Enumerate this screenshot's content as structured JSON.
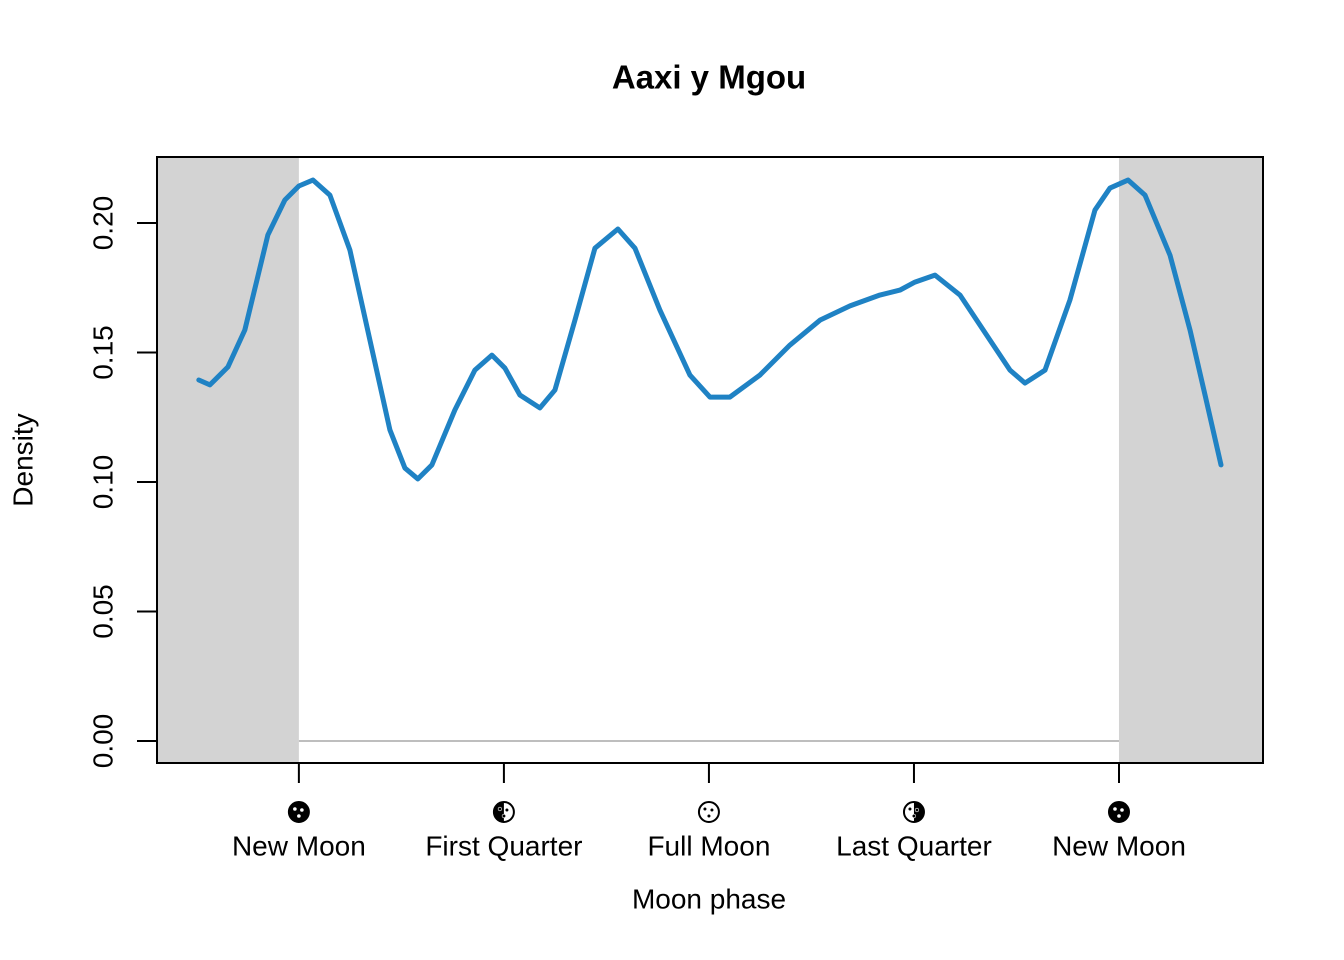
{
  "chart_data": {
    "type": "line",
    "title": "Aaxi y Mgou",
    "x_label": "Moon phase",
    "y_label": "Density",
    "xlim": [
      -0.173,
      1.1756
    ],
    "ylim": [
      -0.0085,
      0.2255
    ],
    "xticks": [
      {
        "value": 0,
        "label": "New Moon"
      },
      {
        "value": 0.25,
        "label": "First Quarter"
      },
      {
        "value": 0.5,
        "label": "Full Moon"
      },
      {
        "value": 0.75,
        "label": "Last Quarter"
      },
      {
        "value": 1,
        "label": "New Moon"
      }
    ],
    "yticks": [
      {
        "value": 0,
        "label": "0.00"
      },
      {
        "value": 0.05,
        "label": "0.05"
      },
      {
        "value": 0.1,
        "label": "0.10"
      },
      {
        "value": 0.15,
        "label": "0.15"
      },
      {
        "value": 0.2,
        "label": "0.20"
      }
    ],
    "series": [
      {
        "color": "#1f82c4",
        "x": [
          -0.122,
          -0.1085,
          -0.0866,
          -0.0659,
          -0.0378,
          -0.0171,
          0,
          0.0171,
          0.0378,
          0.0622,
          0.0866,
          0.111,
          0.1293,
          0.1451,
          0.1622,
          0.1902,
          0.2146,
          0.2354,
          0.2512,
          0.2695,
          0.2939,
          0.3122,
          0.3366,
          0.361,
          0.389,
          0.4098,
          0.4402,
          0.4768,
          0.5012,
          0.5256,
          0.5622,
          0.5988,
          0.6354,
          0.672,
          0.7085,
          0.7329,
          0.7512,
          0.7756,
          0.8061,
          0.8427,
          0.8671,
          0.8854,
          0.9098,
          0.9402,
          0.9707,
          0.989,
          1.011,
          1.0317,
          1.0622,
          1.0866,
          1.1049,
          1.1244
        ],
        "values": [
          0.1394,
          0.1375,
          0.1444,
          0.1587,
          0.1954,
          0.2089,
          0.2143,
          0.2166,
          0.2108,
          0.1896,
          0.1548,
          0.1201,
          0.1054,
          0.1012,
          0.1066,
          0.1278,
          0.1432,
          0.149,
          0.144,
          0.1336,
          0.1286,
          0.1355,
          0.1625,
          0.1903,
          0.1977,
          0.1903,
          0.1664,
          0.1413,
          0.1328,
          0.1328,
          0.1413,
          0.1529,
          0.1625,
          0.168,
          0.1722,
          0.1741,
          0.1772,
          0.1799,
          0.1722,
          0.1548,
          0.1432,
          0.1382,
          0.1432,
          0.1703,
          0.205,
          0.2135,
          0.2166,
          0.2108,
          0.1876,
          0.1587,
          0.1336,
          0.1066
        ]
      }
    ]
  }
}
